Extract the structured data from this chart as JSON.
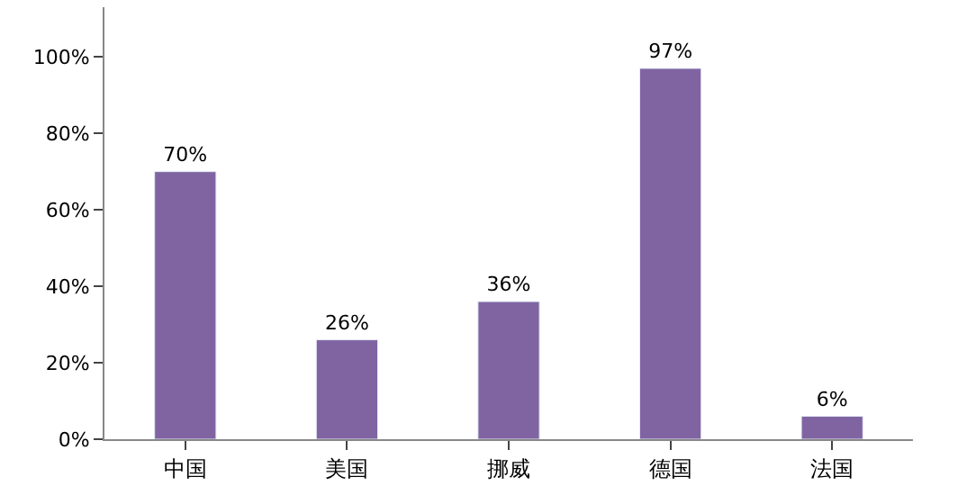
{
  "chart_data": {
    "type": "bar",
    "categories": [
      "中国",
      "美国",
      "挪威",
      "德国",
      "法国"
    ],
    "values": [
      70,
      26,
      36,
      97,
      6
    ],
    "color": "#8064a2",
    "value_labels": [
      "70%",
      "26%",
      "36%",
      "97%",
      "6%"
    ],
    "ylim": [
      0,
      113
    ],
    "yticks": [
      {
        "value": 0,
        "label": "0%"
      },
      {
        "value": 20,
        "label": "20%"
      },
      {
        "value": 40,
        "label": "40%"
      },
      {
        "value": 60,
        "label": "60%"
      },
      {
        "value": 80,
        "label": "80%"
      },
      {
        "value": 100,
        "label": "100%"
      }
    ]
  }
}
